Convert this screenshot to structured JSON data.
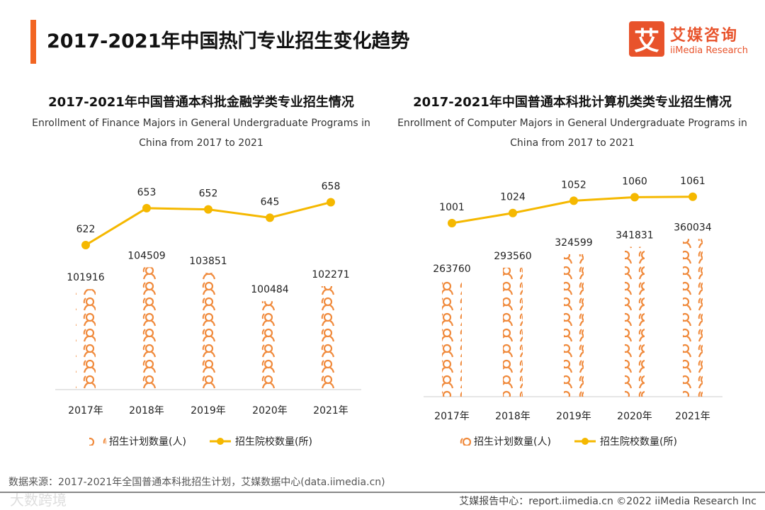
{
  "header": {
    "title": "2017-2021年中国热门专业招生变化趋势",
    "logo_mark": "艾",
    "logo_cn": "艾媒咨询",
    "logo_en": "iiMedia Research"
  },
  "colors": {
    "accent": "#f26522",
    "bar": "#f08a3c",
    "line": "#f5b800",
    "axis": "#dddddd"
  },
  "chart_data": [
    {
      "type": "bar+line",
      "title": "2017-2021年中国普通本科批金融学类专业招生情况",
      "subtitle": "Enrollment of Finance Majors in General Undergraduate Programs in China from 2017 to 2021",
      "categories": [
        "2017年",
        "2018年",
        "2019年",
        "2020年",
        "2021年"
      ],
      "series": [
        {
          "name": "招生计划数量(人)",
          "type": "pictograph-bar",
          "values": [
            101916,
            104509,
            103851,
            100484,
            102271
          ]
        },
        {
          "name": "招生院校数量(所)",
          "type": "line",
          "values": [
            622,
            653,
            652,
            645,
            658
          ]
        }
      ],
      "legend": "bottom"
    },
    {
      "type": "bar+line",
      "title": "2017-2021年中国普通本科批计算机类类专业招生情况",
      "subtitle": "Enrollment of Computer Majors in General Undergraduate Programs in China from 2017 to 2021",
      "categories": [
        "2017年",
        "2018年",
        "2019年",
        "2020年",
        "2021年"
      ],
      "series": [
        {
          "name": "招生计划数量(人)",
          "type": "pictograph-bar",
          "values": [
            263760,
            293560,
            324599,
            341831,
            360034
          ]
        },
        {
          "name": "招生院校数量(所)",
          "type": "line",
          "values": [
            1001,
            1024,
            1052,
            1060,
            1061
          ]
        }
      ],
      "legend": "bottom"
    }
  ],
  "footer": {
    "source": "数据来源：2017-2021年全国普通本科批招生计划，艾媒数据中心(data.iimedia.cn)",
    "report": "艾媒报告中心：report.iimedia.cn  ©2022  iiMedia Research  Inc",
    "watermark": "大数跨境"
  }
}
